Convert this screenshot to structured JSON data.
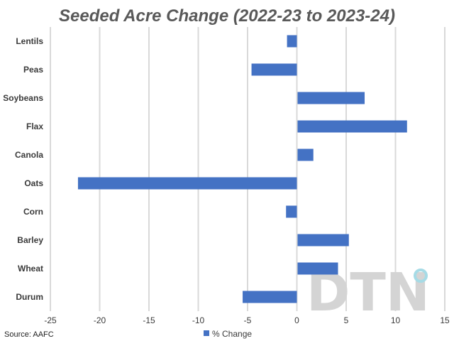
{
  "chart_data": {
    "type": "bar",
    "orientation": "horizontal",
    "title": "Seeded Acre Change (2022-23 to 2023-24)",
    "categories": [
      "Lentils",
      "Peas",
      "Soybeans",
      "Flax",
      "Canola",
      "Oats",
      "Corn",
      "Barley",
      "Wheat",
      "Durum"
    ],
    "series": [
      {
        "name": "% Change",
        "color": "#4472C4",
        "values": [
          -1.0,
          -4.6,
          6.8,
          11.1,
          1.6,
          -22.2,
          -1.1,
          5.2,
          4.1,
          -5.5
        ]
      }
    ],
    "xlim": [
      -25,
      15
    ],
    "xticks": [
      -25,
      -20,
      -15,
      -10,
      -5,
      0,
      5,
      10,
      15
    ],
    "grid": "vertical",
    "legend_position": "bottom"
  },
  "source": "Source: AAFC",
  "watermark": {
    "text": "DTN",
    "icon": "dtn-logo-icon"
  }
}
